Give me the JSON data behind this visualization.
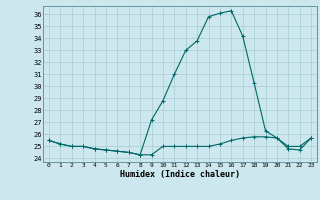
{
  "title": "",
  "xlabel": "Humidex (Indice chaleur)",
  "x_values": [
    0,
    1,
    2,
    3,
    4,
    5,
    6,
    7,
    8,
    9,
    10,
    11,
    12,
    13,
    14,
    15,
    16,
    17,
    18,
    19,
    20,
    21,
    22,
    23
  ],
  "line1": [
    25.5,
    25.2,
    25.0,
    25.0,
    24.8,
    24.7,
    24.6,
    24.5,
    24.3,
    27.2,
    28.8,
    31.0,
    33.0,
    33.8,
    35.8,
    36.1,
    36.3,
    34.2,
    30.3,
    26.3,
    25.7,
    24.8,
    24.7,
    25.7
  ],
  "line2": [
    25.5,
    25.2,
    25.0,
    25.0,
    24.8,
    24.7,
    24.6,
    24.5,
    24.3,
    24.3,
    25.0,
    25.0,
    25.0,
    25.0,
    25.0,
    25.2,
    25.5,
    25.7,
    25.8,
    25.8,
    25.7,
    25.0,
    25.0,
    25.7
  ],
  "ylim": [
    23.7,
    36.7
  ],
  "yticks": [
    24,
    25,
    26,
    27,
    28,
    29,
    30,
    31,
    32,
    33,
    34,
    35,
    36
  ],
  "xticks": [
    0,
    1,
    2,
    3,
    4,
    5,
    6,
    7,
    8,
    9,
    10,
    11,
    12,
    13,
    14,
    15,
    16,
    17,
    18,
    19,
    20,
    21,
    22,
    23
  ],
  "bg_color": "#cce8ee",
  "line_color": "#006666",
  "grid_color": "#aaccd4"
}
